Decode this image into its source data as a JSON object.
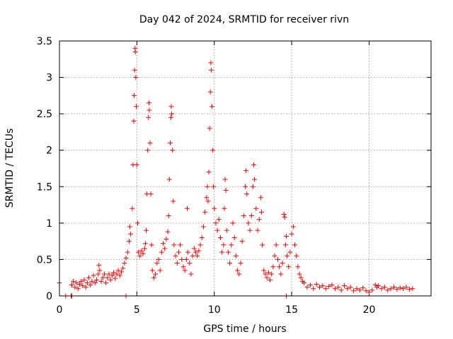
{
  "chart_data": {
    "type": "scatter",
    "title": "Day 042 of 2024, SRMTID for receiver rivn",
    "xlabel": "GPS time / hours",
    "ylabel": "SRMTID / TECUs",
    "xlim": [
      0,
      24
    ],
    "ylim": [
      0,
      3.5
    ],
    "x_ticks": [
      {
        "value": 0,
        "label": "0"
      },
      {
        "value": 5,
        "label": "5"
      },
      {
        "value": 10,
        "label": "10"
      },
      {
        "value": 15,
        "label": "15"
      },
      {
        "value": 20,
        "label": "20"
      }
    ],
    "y_ticks": [
      {
        "value": 0,
        "label": "0"
      },
      {
        "value": 0.5,
        "label": "0.5"
      },
      {
        "value": 1,
        "label": "1"
      },
      {
        "value": 1.5,
        "label": "1.5"
      },
      {
        "value": 2,
        "label": "2"
      },
      {
        "value": 2.5,
        "label": "2.5"
      },
      {
        "value": 3,
        "label": "3"
      },
      {
        "value": 3.5,
        "label": "3.5"
      }
    ],
    "grid": true,
    "marker": "+",
    "series": [
      {
        "name": "SRMTID",
        "color": "#ff0000",
        "points": [
          [
            0.0,
            0.18
          ],
          [
            0.4,
            0.0
          ],
          [
            0.75,
            0.0
          ],
          [
            0.8,
            0.0
          ],
          [
            4.3,
            0.0
          ],
          [
            14.65,
            0.0
          ],
          [
            0.8,
            0.15
          ],
          [
            0.9,
            0.2
          ],
          [
            1.0,
            0.12
          ],
          [
            1.1,
            0.18
          ],
          [
            1.2,
            0.1
          ],
          [
            1.3,
            0.16
          ],
          [
            1.4,
            0.2
          ],
          [
            1.5,
            0.14
          ],
          [
            1.6,
            0.22
          ],
          [
            1.7,
            0.12
          ],
          [
            1.8,
            0.18
          ],
          [
            1.9,
            0.25
          ],
          [
            2.0,
            0.15
          ],
          [
            2.1,
            0.2
          ],
          [
            2.2,
            0.28
          ],
          [
            2.3,
            0.18
          ],
          [
            2.4,
            0.22
          ],
          [
            2.5,
            0.3
          ],
          [
            2.55,
            0.42
          ],
          [
            2.6,
            0.35
          ],
          [
            2.7,
            0.2
          ],
          [
            2.8,
            0.25
          ],
          [
            2.9,
            0.3
          ],
          [
            3.0,
            0.18
          ],
          [
            3.1,
            0.25
          ],
          [
            3.2,
            0.3
          ],
          [
            3.3,
            0.22
          ],
          [
            3.4,
            0.28
          ],
          [
            3.5,
            0.32
          ],
          [
            3.6,
            0.24
          ],
          [
            3.7,
            0.3
          ],
          [
            3.8,
            0.35
          ],
          [
            3.9,
            0.28
          ],
          [
            4.0,
            0.33
          ],
          [
            4.1,
            0.38
          ],
          [
            4.2,
            0.45
          ],
          [
            4.3,
            0.52
          ],
          [
            4.4,
            0.6
          ],
          [
            4.5,
            0.75
          ],
          [
            4.55,
            0.95
          ],
          [
            4.6,
            0.85
          ],
          [
            4.7,
            1.2
          ],
          [
            4.75,
            1.8
          ],
          [
            4.8,
            2.4
          ],
          [
            4.82,
            2.75
          ],
          [
            4.85,
            3.1
          ],
          [
            4.88,
            3.4
          ],
          [
            4.9,
            3.35
          ],
          [
            4.93,
            3.0
          ],
          [
            4.96,
            2.6
          ],
          [
            5.0,
            1.8
          ],
          [
            5.05,
            1.0
          ],
          [
            5.1,
            0.6
          ],
          [
            5.2,
            0.55
          ],
          [
            5.3,
            0.62
          ],
          [
            5.4,
            0.58
          ],
          [
            5.5,
            0.65
          ],
          [
            5.55,
            0.72
          ],
          [
            5.6,
            0.9
          ],
          [
            5.65,
            1.4
          ],
          [
            5.7,
            2.0
          ],
          [
            5.75,
            2.45
          ],
          [
            5.78,
            2.65
          ],
          [
            5.8,
            2.55
          ],
          [
            5.85,
            2.1
          ],
          [
            5.9,
            1.4
          ],
          [
            5.95,
            0.7
          ],
          [
            6.0,
            0.35
          ],
          [
            6.1,
            0.25
          ],
          [
            6.2,
            0.3
          ],
          [
            6.3,
            0.45
          ],
          [
            6.4,
            0.5
          ],
          [
            6.5,
            0.35
          ],
          [
            6.6,
            0.6
          ],
          [
            6.7,
            0.72
          ],
          [
            6.8,
            0.65
          ],
          [
            6.9,
            0.78
          ],
          [
            7.0,
            0.88
          ],
          [
            7.05,
            1.1
          ],
          [
            7.1,
            1.6
          ],
          [
            7.15,
            2.1
          ],
          [
            7.2,
            2.45
          ],
          [
            7.22,
            2.6
          ],
          [
            7.25,
            2.5
          ],
          [
            7.3,
            2.0
          ],
          [
            7.35,
            1.3
          ],
          [
            7.4,
            0.7
          ],
          [
            7.5,
            0.55
          ],
          [
            7.6,
            0.45
          ],
          [
            7.7,
            0.6
          ],
          [
            7.8,
            0.7
          ],
          [
            7.9,
            0.5
          ],
          [
            8.0,
            0.4
          ],
          [
            8.1,
            0.35
          ],
          [
            8.2,
            0.5
          ],
          [
            8.25,
            1.2
          ],
          [
            8.3,
            0.6
          ],
          [
            8.4,
            0.45
          ],
          [
            8.5,
            0.3
          ],
          [
            8.6,
            0.55
          ],
          [
            8.7,
            0.65
          ],
          [
            8.8,
            0.6
          ],
          [
            8.9,
            0.55
          ],
          [
            9.0,
            0.62
          ],
          [
            9.1,
            0.7
          ],
          [
            9.2,
            0.8
          ],
          [
            9.3,
            0.95
          ],
          [
            9.4,
            1.15
          ],
          [
            9.5,
            1.35
          ],
          [
            9.55,
            1.5
          ],
          [
            9.6,
            1.3
          ],
          [
            9.65,
            1.7
          ],
          [
            9.7,
            2.3
          ],
          [
            9.75,
            2.8
          ],
          [
            9.78,
            3.2
          ],
          [
            9.8,
            3.1
          ],
          [
            9.85,
            2.6
          ],
          [
            9.9,
            2.0
          ],
          [
            9.95,
            1.5
          ],
          [
            10.0,
            1.2
          ],
          [
            10.1,
            1.0
          ],
          [
            10.2,
            0.9
          ],
          [
            10.3,
            1.05
          ],
          [
            10.4,
            0.8
          ],
          [
            10.5,
            0.6
          ],
          [
            10.6,
            0.7
          ],
          [
            10.65,
            1.2
          ],
          [
            10.7,
            1.6
          ],
          [
            10.75,
            1.45
          ],
          [
            10.8,
            0.9
          ],
          [
            10.9,
            0.6
          ],
          [
            11.0,
            0.45
          ],
          [
            11.1,
            0.7
          ],
          [
            11.2,
            1.0
          ],
          [
            11.3,
            0.8
          ],
          [
            11.4,
            0.55
          ],
          [
            11.5,
            0.35
          ],
          [
            11.6,
            0.3
          ],
          [
            11.7,
            0.45
          ],
          [
            11.8,
            0.75
          ],
          [
            11.9,
            1.1
          ],
          [
            12.0,
            1.5
          ],
          [
            12.05,
            1.72
          ],
          [
            12.1,
            1.4
          ],
          [
            12.2,
            1.0
          ],
          [
            12.3,
            0.9
          ],
          [
            12.4,
            1.1
          ],
          [
            12.5,
            1.5
          ],
          [
            12.55,
            1.8
          ],
          [
            12.6,
            1.6
          ],
          [
            12.7,
            1.2
          ],
          [
            12.8,
            0.9
          ],
          [
            12.9,
            1.05
          ],
          [
            13.0,
            1.35
          ],
          [
            13.05,
            1.15
          ],
          [
            13.1,
            0.7
          ],
          [
            13.2,
            0.35
          ],
          [
            13.3,
            0.3
          ],
          [
            13.4,
            0.25
          ],
          [
            13.5,
            0.32
          ],
          [
            13.6,
            0.22
          ],
          [
            13.7,
            0.3
          ],
          [
            13.8,
            0.4
          ],
          [
            13.9,
            0.55
          ],
          [
            14.0,
            0.7
          ],
          [
            14.1,
            0.5
          ],
          [
            14.2,
            0.4
          ],
          [
            14.3,
            0.3
          ],
          [
            14.4,
            0.45
          ],
          [
            14.5,
            1.12
          ],
          [
            14.55,
            1.08
          ],
          [
            14.6,
            0.7
          ],
          [
            14.65,
            0.82
          ],
          [
            14.7,
            0.55
          ],
          [
            14.8,
            0.4
          ],
          [
            14.9,
            0.6
          ],
          [
            15.0,
            0.85
          ],
          [
            15.1,
            0.95
          ],
          [
            15.2,
            0.7
          ],
          [
            15.3,
            0.55
          ],
          [
            15.4,
            0.4
          ],
          [
            15.5,
            0.3
          ],
          [
            15.6,
            0.25
          ],
          [
            15.7,
            0.2
          ],
          [
            15.8,
            0.18
          ],
          [
            16.0,
            0.12
          ],
          [
            16.2,
            0.15
          ],
          [
            16.4,
            0.1
          ],
          [
            16.6,
            0.16
          ],
          [
            16.8,
            0.12
          ],
          [
            17.0,
            0.14
          ],
          [
            17.2,
            0.1
          ],
          [
            17.4,
            0.13
          ],
          [
            17.6,
            0.15
          ],
          [
            17.8,
            0.1
          ],
          [
            18.0,
            0.12
          ],
          [
            18.2,
            0.08
          ],
          [
            18.4,
            0.14
          ],
          [
            18.6,
            0.1
          ],
          [
            18.8,
            0.12
          ],
          [
            19.0,
            0.07
          ],
          [
            19.2,
            0.1
          ],
          [
            19.4,
            0.08
          ],
          [
            19.6,
            0.11
          ],
          [
            19.8,
            0.07
          ],
          [
            20.0,
            0.05
          ],
          [
            20.2,
            0.08
          ],
          [
            20.4,
            0.15
          ],
          [
            20.5,
            0.12
          ],
          [
            20.6,
            0.14
          ],
          [
            20.8,
            0.1
          ],
          [
            21.0,
            0.12
          ],
          [
            21.2,
            0.08
          ],
          [
            21.4,
            0.1
          ],
          [
            21.6,
            0.12
          ],
          [
            21.8,
            0.09
          ],
          [
            22.0,
            0.11
          ],
          [
            22.2,
            0.1
          ],
          [
            22.4,
            0.12
          ],
          [
            22.6,
            0.09
          ],
          [
            22.8,
            0.1
          ]
        ]
      }
    ]
  }
}
